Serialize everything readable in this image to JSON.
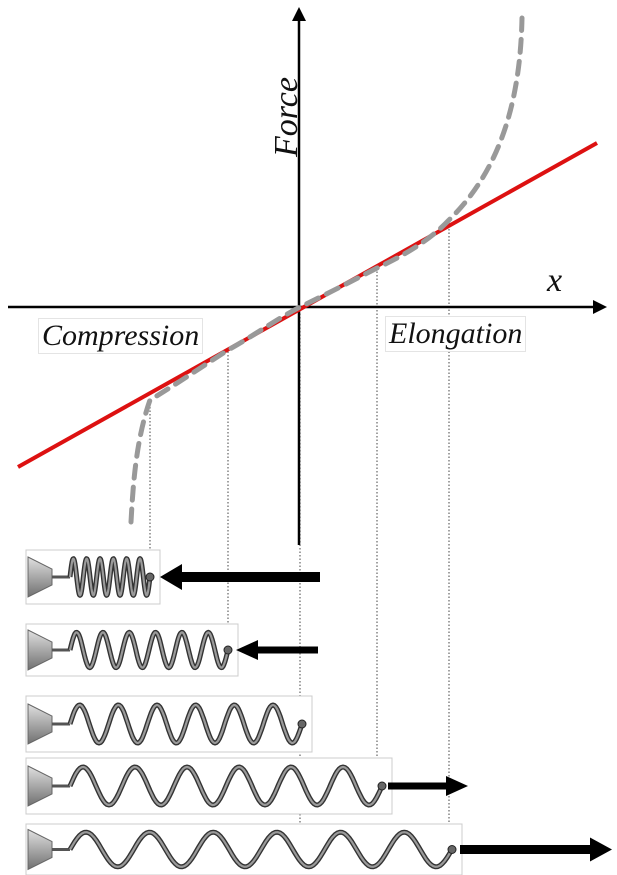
{
  "diagram": {
    "y_axis_label": "Force",
    "x_axis_label": "x",
    "left_region_label": "Compression",
    "right_region_label": "Elongation",
    "colors": {
      "linear_law": "#dd1111",
      "real_behavior": "#999999",
      "axes": "#000000",
      "arrows": "#000000",
      "spring_base": "#aaaaaa",
      "spring_coil": "#555555"
    }
  },
  "springs": [
    {
      "state": "strong-compression",
      "turns": 6,
      "force": "compressive",
      "arrow_strength": "large"
    },
    {
      "state": "compression",
      "turns": 6,
      "force": "compressive",
      "arrow_strength": "small"
    },
    {
      "state": "rest",
      "turns": 6,
      "force": "none",
      "arrow_strength": "none"
    },
    {
      "state": "elongation",
      "turns": 6,
      "force": "tensile",
      "arrow_strength": "medium"
    },
    {
      "state": "strong-elongation",
      "turns": 6,
      "force": "tensile",
      "arrow_strength": "large"
    }
  ]
}
